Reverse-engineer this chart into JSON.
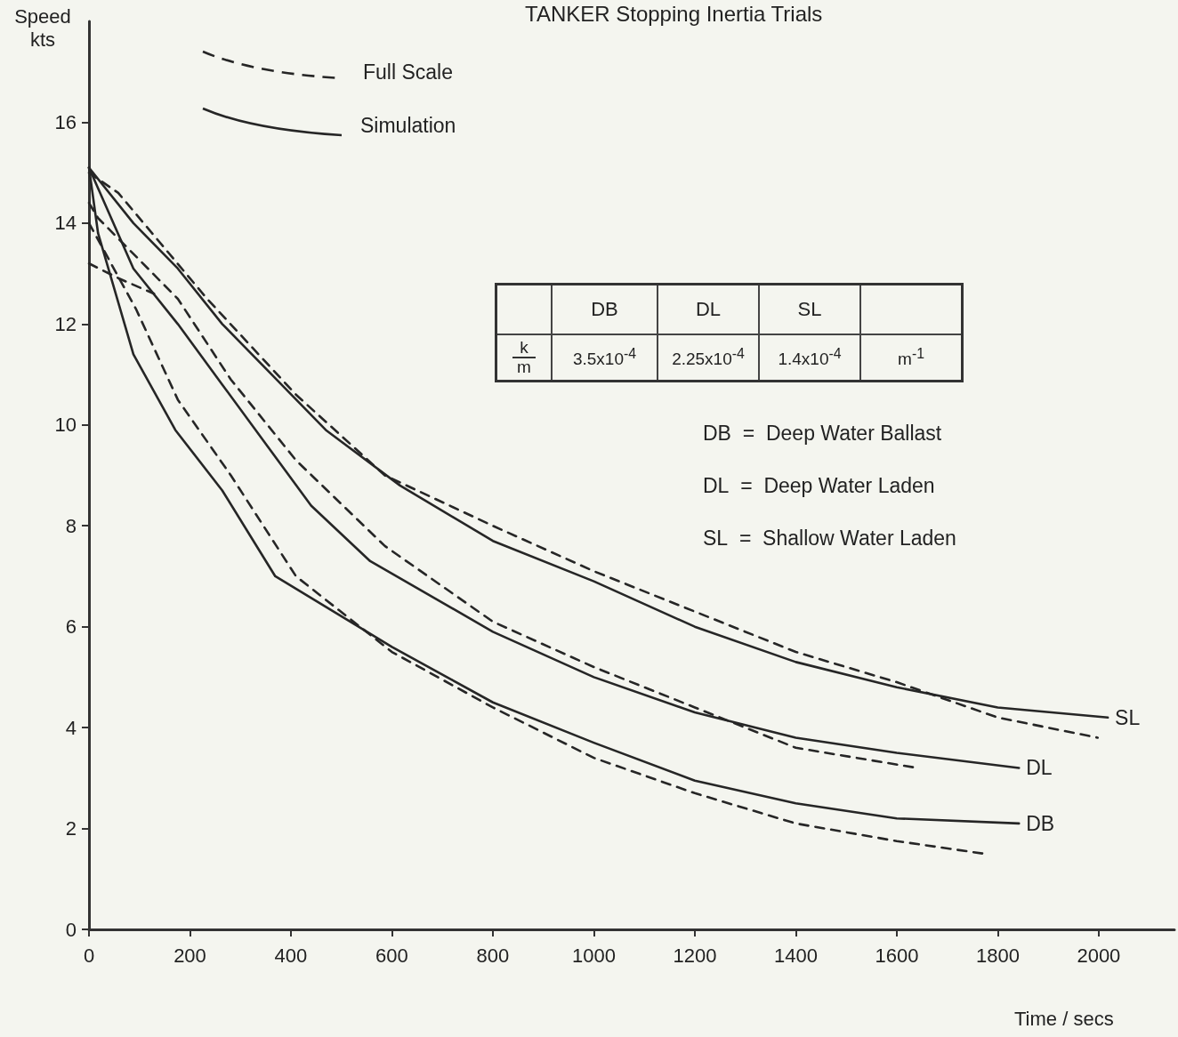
{
  "chart_data": {
    "type": "line",
    "title": "TANKER Stopping Inertia Trials",
    "xlabel": "Time / secs",
    "ylabel": "Speed kts",
    "xlim": [
      0,
      2150
    ],
    "xticks": [
      0,
      200,
      400,
      600,
      800,
      1000,
      1200,
      1400,
      1600,
      1800,
      2000
    ],
    "ylim": [
      0,
      18
    ],
    "yticks": [
      0,
      2,
      4,
      6,
      8,
      10,
      12,
      14,
      16
    ],
    "grid": false,
    "legend": false,
    "marker": "none",
    "line_style": "solid",
    "series": [
      {
        "name": "SL",
        "color": "#262626",
        "x": [
          0,
          88,
          176,
          264,
          352,
          469,
          616,
          800,
          1000,
          1200,
          1400,
          1600,
          1800,
          2018
        ],
        "values": [
          15.1,
          14.0,
          13.1,
          12.0,
          11.1,
          9.9,
          8.8,
          7.7,
          6.9,
          6.0,
          5.3,
          4.8,
          4.4,
          4.2
        ]
      },
      {
        "color": "#262626",
        "line_style": "dashed",
        "x": [
          0,
          58,
          234,
          410,
          586,
          800,
          1000,
          1200,
          1400,
          1600,
          1800,
          1998
        ],
        "values": [
          15.0,
          14.6,
          12.5,
          10.6,
          9.0,
          8.0,
          7.1,
          6.3,
          5.5,
          4.9,
          4.2,
          3.8
        ]
      },
      {
        "name": "DL",
        "color": "#262626",
        "x": [
          0,
          88,
          176,
          264,
          352,
          440,
          557,
          800,
          1000,
          1200,
          1400,
          1600,
          1842
        ],
        "values": [
          15.1,
          13.1,
          12.0,
          10.8,
          9.6,
          8.4,
          7.3,
          5.9,
          5.0,
          4.3,
          3.8,
          3.5,
          3.2
        ]
      },
      {
        "color": "#262626",
        "line_style": "dashed",
        "x": [
          0,
          18,
          176,
          281,
          410,
          586,
          800,
          1000,
          1200,
          1400,
          1641
        ],
        "values": [
          14.4,
          14.1,
          12.5,
          10.9,
          9.3,
          7.6,
          6.1,
          5.2,
          4.4,
          3.6,
          3.2
        ]
      },
      {
        "color": "#262626",
        "line_style": "dashed",
        "x": [
          0,
          60,
          129
        ],
        "values": [
          13.2,
          12.9,
          12.6
        ]
      },
      {
        "name": "DB",
        "color": "#262626",
        "x": [
          0,
          18,
          88,
          171,
          264,
          369,
          600,
          800,
          1000,
          1200,
          1400,
          1600,
          1842
        ],
        "values": [
          15.1,
          13.8,
          11.4,
          9.9,
          8.7,
          7.0,
          5.6,
          4.5,
          3.7,
          2.95,
          2.5,
          2.2,
          2.1
        ]
      },
      {
        "color": "#262626",
        "line_style": "dashed",
        "x": [
          0,
          93,
          176,
          281,
          410,
          600,
          800,
          1000,
          1200,
          1400,
          1600,
          1773
        ],
        "values": [
          14.0,
          12.3,
          10.5,
          9.0,
          7.0,
          5.5,
          4.4,
          3.4,
          2.7,
          2.1,
          1.75,
          1.5
        ]
      }
    ],
    "annotations": [
      "Full Scale",
      "Simulation",
      "DB",
      "DL",
      "SL",
      "k",
      "m",
      "3.5x10$^{-4}$",
      "2.25x10$^{-4}$",
      "1.4x10$^{-4}$",
      "m$^{-1}$",
      "DB  =  Deep Water Ballast",
      "DL  =  Deep Water Laden",
      "SL  =  Shallow Water Laden"
    ]
  }
}
